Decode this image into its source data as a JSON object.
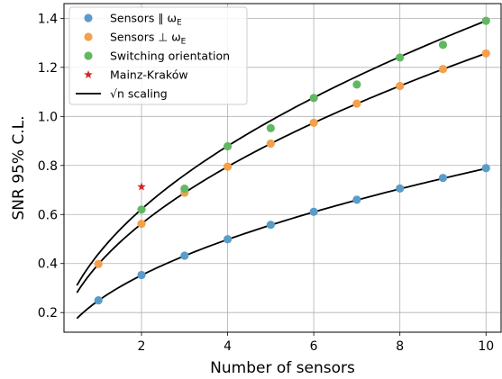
{
  "chart_data": {
    "type": "scatter",
    "xlabel": "Number of sensors",
    "ylabel": "SNR 95% C.L.",
    "xlim": [
      0.2,
      10.35
    ],
    "ylim": [
      0.12,
      1.46
    ],
    "xticks": [
      2,
      4,
      6,
      8,
      10
    ],
    "yticks": [
      0.2,
      0.4,
      0.6,
      0.8,
      1.0,
      1.2,
      1.4
    ],
    "xtick_labels": [
      "2",
      "4",
      "6",
      "8",
      "10"
    ],
    "ytick_labels": [
      "0.2",
      "0.4",
      "0.6",
      "0.8",
      "1.0",
      "1.2",
      "1.4"
    ],
    "grid": true,
    "legend_position": "top-left",
    "colors": {
      "parallel": "#5a9cc8",
      "perpendicular": "#f5a04a",
      "switching": "#62b862",
      "mainz_krakow": "#d62728",
      "scaling": "#000000"
    },
    "series": [
      {
        "key": "parallel",
        "name": "Sensors ∥ ω",
        "name_sub": "E",
        "type": "scatter",
        "x": [
          1,
          2,
          3,
          4,
          5,
          6,
          7,
          8,
          9,
          10
        ],
        "y": [
          0.25,
          0.353,
          0.432,
          0.499,
          0.558,
          0.611,
          0.66,
          0.706,
          0.749,
          0.789
        ]
      },
      {
        "key": "perpendicular",
        "name": "Sensors ⊥ ω",
        "name_sub": "E",
        "type": "scatter",
        "x": [
          1,
          2,
          3,
          4,
          5,
          6,
          7,
          8,
          9,
          10
        ],
        "y": [
          0.398,
          0.562,
          0.689,
          0.795,
          0.889,
          0.974,
          1.052,
          1.124,
          1.193,
          1.257
        ]
      },
      {
        "key": "switching",
        "name": "Switching orientation",
        "type": "scatter",
        "x": [
          2,
          3,
          4,
          5,
          6,
          7,
          8,
          9,
          10
        ],
        "y": [
          0.62,
          0.705,
          0.878,
          0.952,
          1.075,
          1.13,
          1.24,
          1.292,
          1.39
        ]
      },
      {
        "key": "mainz_krakow",
        "name": "Mainz-Kraków",
        "type": "star",
        "x": [
          2
        ],
        "y": [
          0.713
        ]
      }
    ],
    "scaling_curves": {
      "name": "√n scaling",
      "x_range": [
        0.5,
        10
      ],
      "coefficients": [
        0.249,
        0.3975,
        0.4395
      ]
    }
  }
}
